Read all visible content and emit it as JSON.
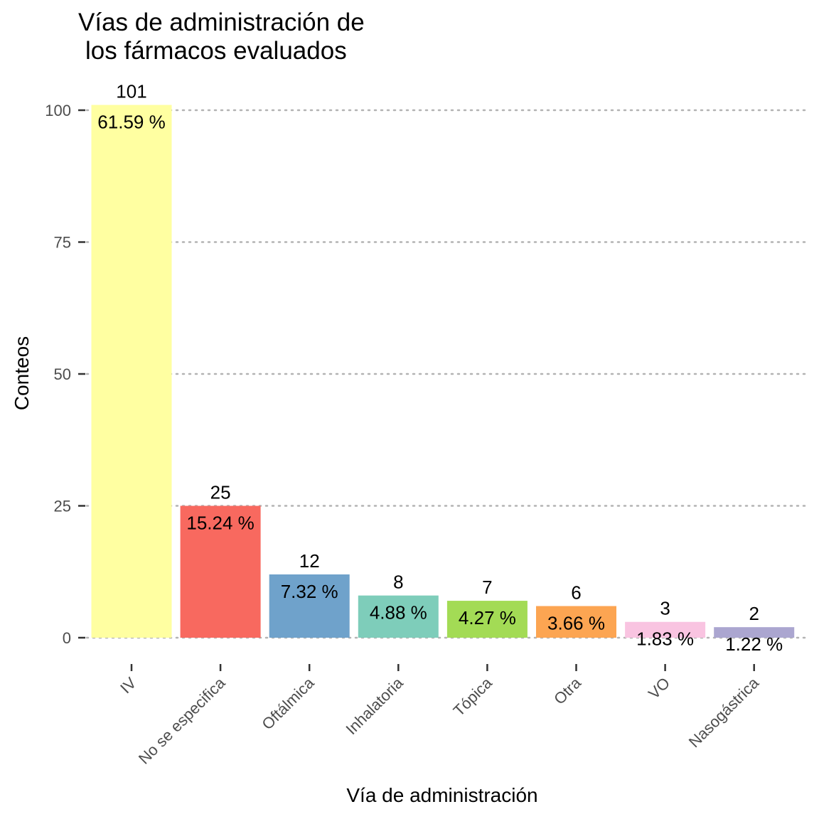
{
  "chart_data": {
    "type": "bar",
    "title": "Vías de administración de los fármacos evaluados",
    "title_lines": [
      "Vías de administración de",
      "los fármacos evaluados"
    ],
    "xlabel": "Vía de administración",
    "ylabel": "Conteos",
    "ylim": [
      0,
      101
    ],
    "yticks": [
      0,
      25,
      50,
      75,
      100
    ],
    "categories": [
      "IV",
      "No se especifica",
      "Oftálmica",
      "Inhalatoria",
      "Tópica",
      "Otra",
      "VO",
      "Nasogástrica"
    ],
    "values": [
      101,
      25,
      12,
      8,
      7,
      6,
      3,
      2
    ],
    "percent_labels": [
      "61.59 %",
      "15.24 %",
      "7.32 %",
      "4.88 %",
      "4.27 %",
      "3.66 %",
      "1.83 %",
      "1.22 %"
    ],
    "colors": [
      "#FFFFA1",
      "#F8695F",
      "#6FA2CB",
      "#7ECDBA",
      "#A3DB55",
      "#FCA552",
      "#F9C4E1",
      "#ABA6D0"
    ],
    "grid": "horizontal-dotted",
    "legend": "none"
  }
}
